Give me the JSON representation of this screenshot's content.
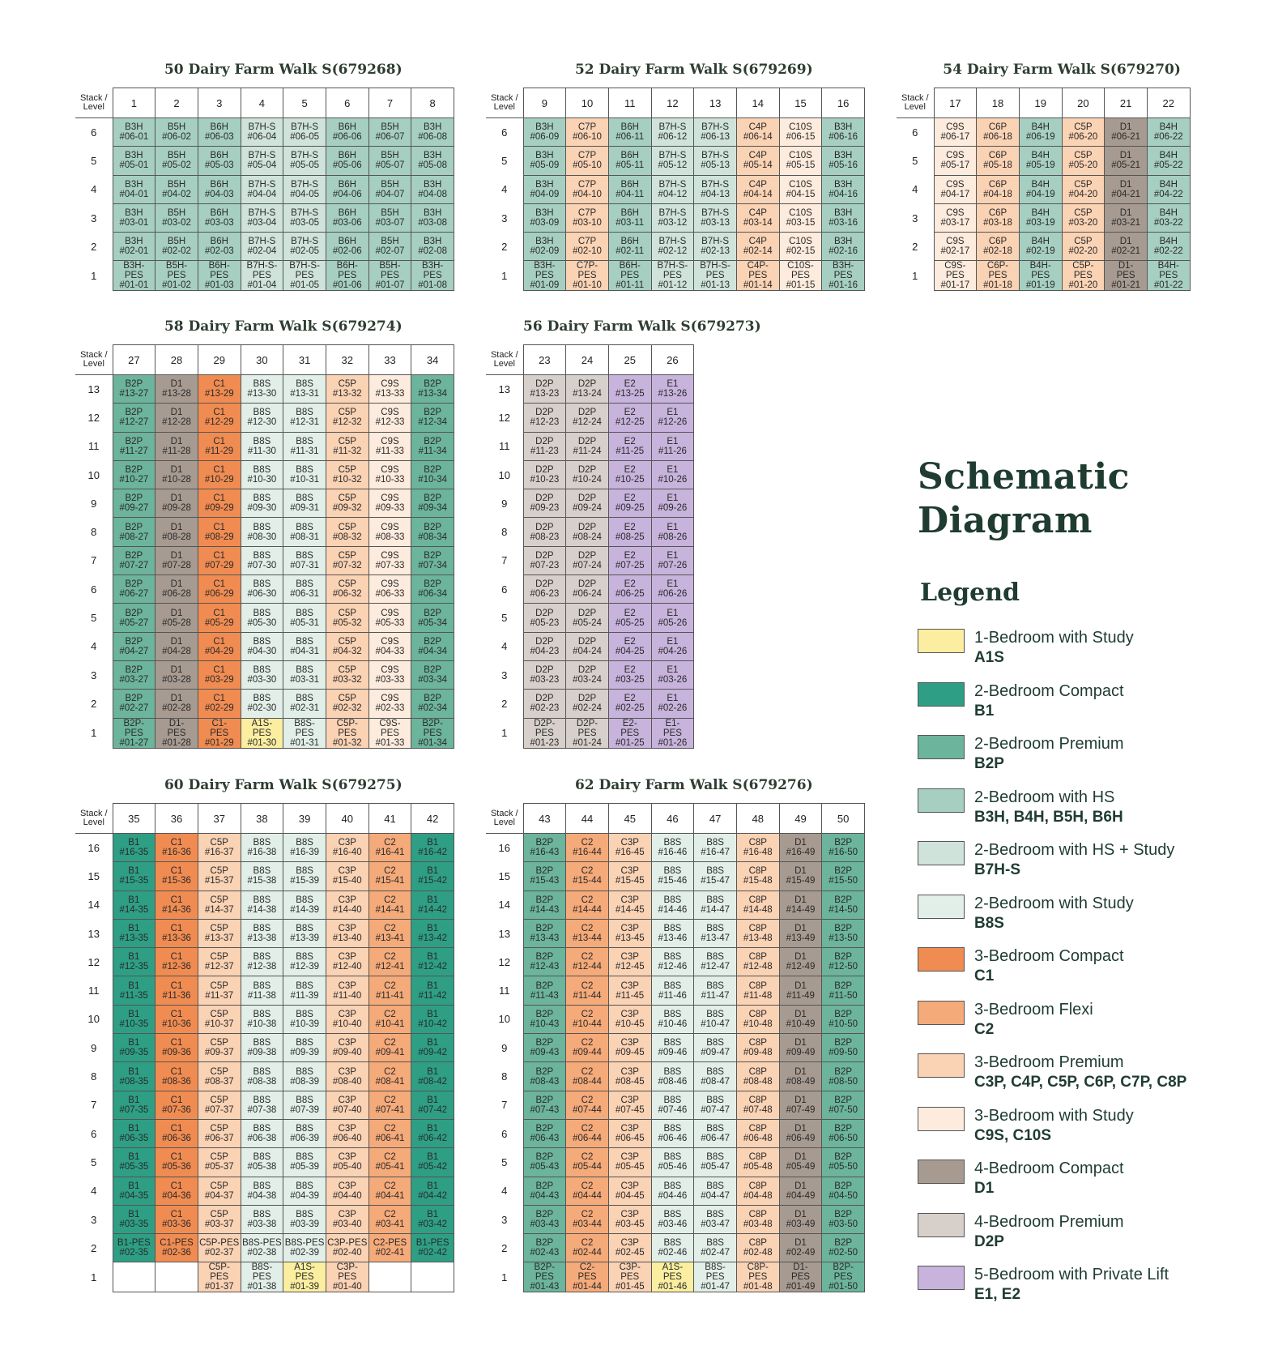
{
  "heading": {
    "line1": "Schematic",
    "line2": "Diagram"
  },
  "legend_title": "Legend",
  "legend": [
    {
      "name": "1-Bedroom with Study",
      "codes": "A1S",
      "color": "#fbeea0"
    },
    {
      "name": "2-Bedroom Compact",
      "codes": "B1",
      "color": "#2e9f85"
    },
    {
      "name": "2-Bedroom Premium",
      "codes": "B2P",
      "color": "#6cb49c"
    },
    {
      "name": "2-Bedroom with HS",
      "codes": "B3H, B4H, B5H, B6H",
      "color": "#a6cfc1"
    },
    {
      "name": "2-Bedroom with HS + Study",
      "codes": "B7H-S",
      "color": "#cfe3da"
    },
    {
      "name": "2-Bedroom with Study",
      "codes": "B8S",
      "color": "#e2efe9"
    },
    {
      "name": "3-Bedroom Compact",
      "codes": "C1",
      "color": "#f08c52"
    },
    {
      "name": "3-Bedroom Flexi",
      "codes": "C2",
      "color": "#f5aa7a"
    },
    {
      "name": "3-Bedroom Premium",
      "codes": "C3P, C4P, C5P, C6P, C7P, C8P",
      "color": "#fad2b4"
    },
    {
      "name": "3-Bedroom with Study",
      "codes": "C9S, C10S",
      "color": "#fdebdd"
    },
    {
      "name": "4-Bedroom Compact",
      "codes": "D1",
      "color": "#a79b91"
    },
    {
      "name": "4-Bedroom Premium",
      "codes": "D2P",
      "color": "#d7d0ca"
    },
    {
      "name": "5-Bedroom with Private Lift",
      "codes": "E1, E2",
      "color": "#c7b3db"
    }
  ],
  "blocks": [
    {
      "title": "50 Dairy Farm Walk S(679268)",
      "corner_top": "Stack /",
      "corner_bottom": "Level",
      "stacks": [
        "1",
        "2",
        "3",
        "4",
        "5",
        "6",
        "7",
        "8"
      ],
      "types": [
        "B3H",
        "B5H",
        "B6H",
        "B7H-S",
        "B7H-S",
        "B6H",
        "B5H",
        "B3H"
      ],
      "levels": [
        "6",
        "5",
        "4",
        "3",
        "2",
        "1"
      ]
    },
    {
      "title": "52 Dairy Farm Walk S(679269)",
      "corner_top": "Stack /",
      "corner_bottom": "Level",
      "stacks": [
        "9",
        "10",
        "11",
        "12",
        "13",
        "14",
        "15",
        "16"
      ],
      "types": [
        "B3H",
        "C7P",
        "B6H",
        "B7H-S",
        "B7H-S",
        "C4P",
        "C10S",
        "B3H"
      ],
      "levels": [
        "6",
        "5",
        "4",
        "3",
        "2",
        "1"
      ]
    },
    {
      "title": "54 Dairy Farm Walk S(679270)",
      "corner_top": "Stack /",
      "corner_bottom": "Level",
      "stacks": [
        "17",
        "18",
        "19",
        "20",
        "21",
        "22"
      ],
      "types": [
        "C9S",
        "C6P",
        "B4H",
        "C5P",
        "D1",
        "B4H"
      ],
      "levels": [
        "6",
        "5",
        "4",
        "3",
        "2",
        "1"
      ]
    },
    {
      "title": "58 Dairy Farm Walk S(679274)",
      "corner_top": "Stack /",
      "corner_bottom": "Level",
      "stacks": [
        "27",
        "28",
        "29",
        "30",
        "31",
        "32",
        "33",
        "34"
      ],
      "types": [
        "B2P",
        "D1",
        "C1",
        "B8S",
        "B8S",
        "C5P",
        "C9S",
        "B2P"
      ],
      "levels": [
        "13",
        "12",
        "11",
        "10",
        "9",
        "8",
        "7",
        "6",
        "5",
        "4",
        "3",
        "2",
        "1"
      ],
      "overrides": {
        "1|30": "A1S"
      }
    },
    {
      "title": "56 Dairy Farm Walk S(679273)",
      "corner_top": "Stack /",
      "corner_bottom": "Level",
      "stacks": [
        "23",
        "24",
        "25",
        "26"
      ],
      "types": [
        "D2P",
        "D2P",
        "E2",
        "E1"
      ],
      "levels": [
        "13",
        "12",
        "11",
        "10",
        "9",
        "8",
        "7",
        "6",
        "5",
        "4",
        "3",
        "2",
        "1"
      ]
    },
    {
      "title": "60 Dairy Farm Walk S(679275)",
      "corner_top": "Stack /",
      "corner_bottom": "Level",
      "stacks": [
        "35",
        "36",
        "37",
        "38",
        "39",
        "40",
        "41",
        "42"
      ],
      "types": [
        "B1",
        "C1",
        "C5P",
        "B8S",
        "B8S",
        "C3P",
        "C2",
        "B1"
      ],
      "levels": [
        "16",
        "15",
        "14",
        "13",
        "12",
        "11",
        "10",
        "9",
        "8",
        "7",
        "6",
        "5",
        "4",
        "3",
        "2",
        "1"
      ],
      "overrides": {
        "1|39": "A1S"
      },
      "empty": [
        "1|35",
        "1|36",
        "1|41",
        "1|42"
      ],
      "pes_levels": [
        "1",
        "2"
      ]
    },
    {
      "title": "62 Dairy Farm Walk S(679276)",
      "corner_top": "Stack /",
      "corner_bottom": "Level",
      "stacks": [
        "43",
        "44",
        "45",
        "46",
        "47",
        "48",
        "49",
        "50"
      ],
      "types": [
        "B2P",
        "C2",
        "C3P",
        "B8S",
        "B8S",
        "C8P",
        "D1",
        "B2P"
      ],
      "levels": [
        "16",
        "15",
        "14",
        "13",
        "12",
        "11",
        "10",
        "9",
        "8",
        "7",
        "6",
        "5",
        "4",
        "3",
        "2",
        "1"
      ],
      "overrides": {
        "1|46": "A1S"
      }
    }
  ]
}
